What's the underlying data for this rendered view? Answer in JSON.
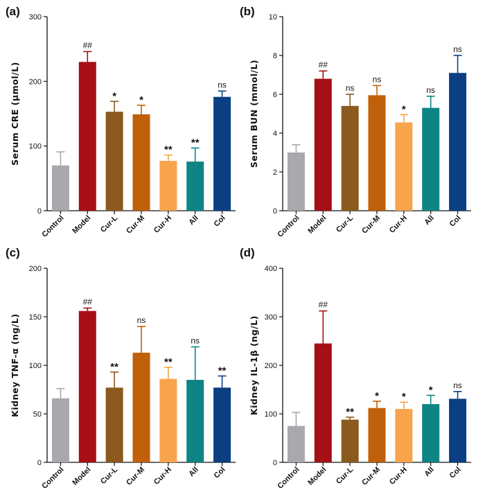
{
  "chart_data": [
    {
      "type": "bar",
      "panel": "(a)",
      "title": "",
      "ylabel": "Serum CRE (μmol/L)",
      "ylim": [
        0,
        300
      ],
      "yticks": [
        0,
        100,
        200,
        300
      ],
      "grid": false,
      "categories": [
        "Control",
        "Model",
        "Cur-L",
        "Cur-M",
        "Cur-H",
        "All",
        "Col"
      ],
      "values": [
        70,
        230,
        153,
        149,
        77,
        76,
        176
      ],
      "errors": [
        21,
        16,
        16,
        14,
        9,
        21,
        9
      ],
      "significance": [
        "",
        "##",
        "*",
        "*",
        "**",
        "**",
        "ns"
      ],
      "colors": [
        "#a8a8ad",
        "#a50f15",
        "#8b5a1e",
        "#c0600a",
        "#f8a44c",
        "#0e8484",
        "#0b3f82"
      ]
    },
    {
      "type": "bar",
      "panel": "(b)",
      "title": "",
      "ylabel": "Serum BUN (mmol/L)",
      "ylim": [
        0,
        10
      ],
      "yticks": [
        0,
        2,
        4,
        6,
        8,
        10
      ],
      "grid": false,
      "categories": [
        "Control",
        "Model",
        "Cur-L",
        "Cur-M",
        "Cur-H",
        "All",
        "Col"
      ],
      "values": [
        3.0,
        6.8,
        5.4,
        5.95,
        4.55,
        5.3,
        7.1
      ],
      "errors": [
        0.4,
        0.4,
        0.6,
        0.5,
        0.4,
        0.6,
        0.9
      ],
      "significance": [
        "",
        "##",
        "ns",
        "ns",
        "*",
        "ns",
        "ns"
      ],
      "colors": [
        "#a8a8ad",
        "#a50f15",
        "#8b5a1e",
        "#c0600a",
        "#f8a44c",
        "#0e8484",
        "#0b3f82"
      ]
    },
    {
      "type": "bar",
      "panel": "(c)",
      "title": "",
      "ylabel": "Kidney TNF-α (ng/L)",
      "ylim": [
        0,
        200
      ],
      "yticks": [
        0,
        50,
        100,
        150,
        200
      ],
      "grid": false,
      "categories": [
        "Control",
        "Model",
        "Cur-L",
        "Cur-M",
        "Cur-H",
        "All",
        "Col"
      ],
      "values": [
        66,
        156,
        77,
        113,
        86,
        85,
        77
      ],
      "errors": [
        10,
        3,
        16,
        27,
        12,
        34,
        12
      ],
      "significance": [
        "",
        "##",
        "**",
        "ns",
        "**",
        "ns",
        "**"
      ],
      "colors": [
        "#a8a8ad",
        "#a50f15",
        "#8b5a1e",
        "#c0600a",
        "#f8a44c",
        "#0e8484",
        "#0b3f82"
      ]
    },
    {
      "type": "bar",
      "panel": "(d)",
      "title": "",
      "ylabel": "Kidney IL-1β (ng/L)",
      "ylim": [
        0,
        400
      ],
      "yticks": [
        0,
        100,
        200,
        300,
        400
      ],
      "grid": false,
      "categories": [
        "Control",
        "Model",
        "Cur-L",
        "Cur-M",
        "Cur-H",
        "All",
        "Col"
      ],
      "values": [
        75,
        245,
        88,
        112,
        110,
        120,
        131
      ],
      "errors": [
        28,
        67,
        5,
        14,
        14,
        18,
        15
      ],
      "significance": [
        "",
        "##",
        "**",
        "*",
        "*",
        "*",
        "ns"
      ],
      "colors": [
        "#a8a8ad",
        "#a50f15",
        "#8b5a1e",
        "#c0600a",
        "#f8a44c",
        "#0e8484",
        "#0b3f82"
      ]
    }
  ]
}
